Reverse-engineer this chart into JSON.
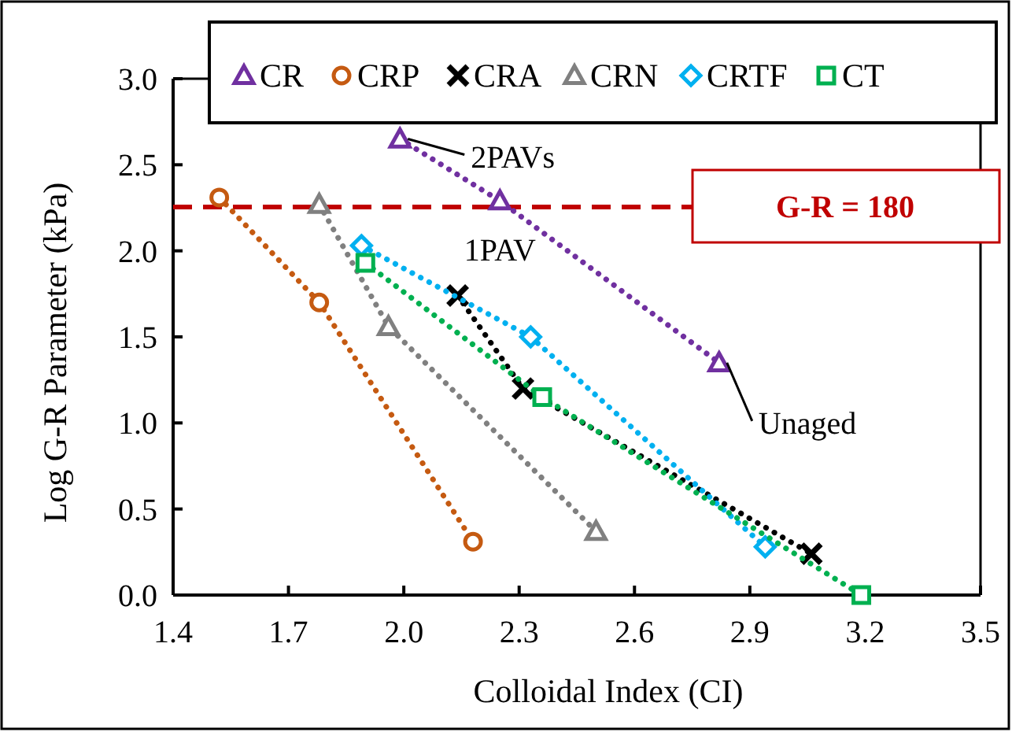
{
  "chart_data": {
    "type": "line",
    "xlabel": "Colloidal Index (CI)",
    "ylabel": "Log G-R Parameter (kPa)",
    "xlim": [
      1.4,
      3.5
    ],
    "xticks": [
      {
        "value": 1.4,
        "label": "1.4"
      },
      {
        "value": 1.7,
        "label": "1.7"
      },
      {
        "value": 2.0,
        "label": "2.0"
      },
      {
        "value": 2.3,
        "label": "2.3"
      },
      {
        "value": 2.6,
        "label": "2.6"
      },
      {
        "value": 2.9,
        "label": "2.9"
      },
      {
        "value": 3.2,
        "label": "3.2"
      },
      {
        "value": 3.5,
        "label": "3.5"
      }
    ],
    "ylim": [
      0,
      3
    ],
    "yticks": [
      {
        "value": 0,
        "label": "0.0"
      },
      {
        "value": 0.5,
        "label": "0.5"
      },
      {
        "value": 1.0,
        "label": "1.0"
      },
      {
        "value": 1.5,
        "label": "1.5"
      },
      {
        "value": 2.0,
        "label": "2.0"
      },
      {
        "value": 2.5,
        "label": "2.5"
      },
      {
        "value": 3.0,
        "label": "3.0"
      }
    ],
    "grid": false,
    "legend": "top",
    "line_style": "dotted",
    "series": [
      {
        "name": "CR",
        "color": "#7030a0",
        "marker": "triangle",
        "x": [
          1.99,
          2.25,
          2.82
        ],
        "values": [
          2.65,
          2.29,
          1.35
        ]
      },
      {
        "name": "CRP",
        "color": "#c55a11",
        "marker": "circle",
        "x": [
          1.52,
          1.78,
          2.18
        ],
        "values": [
          2.31,
          1.7,
          0.31
        ]
      },
      {
        "name": "CRA",
        "color": "#000000",
        "marker": "cross",
        "x": [
          2.14,
          2.31,
          3.06
        ],
        "values": [
          1.74,
          1.2,
          0.24
        ]
      },
      {
        "name": "CRN",
        "color": "#808080",
        "marker": "triangle",
        "x": [
          1.78,
          1.96,
          2.5
        ],
        "values": [
          2.27,
          1.56,
          0.37
        ]
      },
      {
        "name": "CRTF",
        "color": "#00b0f0",
        "marker": "diamond",
        "x": [
          1.89,
          2.33,
          2.94
        ],
        "values": [
          2.03,
          1.5,
          0.28
        ]
      },
      {
        "name": "CT",
        "color": "#00b050",
        "marker": "square",
        "x": [
          1.9,
          2.36,
          3.19
        ],
        "values": [
          1.93,
          1.15,
          0.0
        ]
      }
    ],
    "ref_lines": [
      {
        "axis": "y",
        "value": 2.255,
        "color": "#c00000",
        "line_style": "dashed"
      }
    ],
    "annotations": [
      "G-R = 180",
      {
        "text": "2PAVs",
        "x": 1.99,
        "y": 2.65
      },
      {
        "text": "1PAV",
        "x": 2.25,
        "y": 2.29
      },
      {
        "text": "Unaged",
        "x": 2.82,
        "y": 1.35
      }
    ]
  }
}
